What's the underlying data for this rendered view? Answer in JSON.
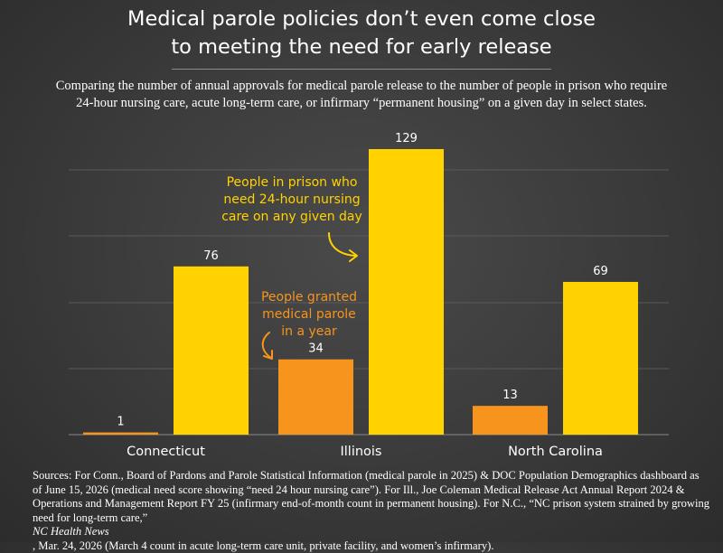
{
  "title_lines": [
    "Medical parole policies don’t even come close",
    "to meeting the need for early release"
  ],
  "subtitle_lines": [
    "Comparing the number of annual approvals for medical parole release to the number of people in prison who require",
    "24-hour nursing care, acute long-term care, or infirmary “permanent housing” on a given day in select states."
  ],
  "chart_data": {
    "type": "bar",
    "categories": [
      "Connecticut",
      "Illinois",
      "North Carolina"
    ],
    "series": [
      {
        "name": "People granted medical parole in a year",
        "values": [
          1,
          34,
          13
        ],
        "color": "#f7941d"
      },
      {
        "name": "People in prison who need 24-hour nursing care on any given day",
        "values": [
          76,
          129,
          69
        ],
        "color": "#ffd200"
      }
    ],
    "value_labels": [
      [
        "1",
        "34",
        "13"
      ],
      [
        "76",
        "129",
        "69"
      ]
    ],
    "ylim": [
      0,
      129
    ],
    "grid": true,
    "annotations": [
      {
        "lines": [
          "People in prison who",
          "need 24-hour nursing",
          "care on any given day"
        ],
        "color": "#ffd200"
      },
      {
        "lines": [
          "People granted",
          "medical parole",
          "in a year"
        ],
        "color": "#f7941d"
      }
    ],
    "background": "#3c3c3c",
    "gridline_color": "#5a5a5a"
  },
  "sources": {
    "line1": "Sources: For Conn., Board of Pardons and Parole Statistical Information (medical parole in 2025) & DOC Population Demographics dashboard as",
    "line2": "of June 15, 2026 (medical need score showing “need 24 hour nursing care”). For Ill., Joe Coleman Medical Release Act Annual Report 2024 &",
    "line3": "Operations and Management Report FY 25 (infirmary end-of-month count in permanent housing). For N.C., “NC prison system strained by growing",
    "line4_a": "need for long-term care,” ",
    "line4_b": "NC Health News",
    "line4_c": ", Mar. 24, 2026 (March 4 count in acute long-term care unit, private facility, and women’s infirmary)."
  }
}
